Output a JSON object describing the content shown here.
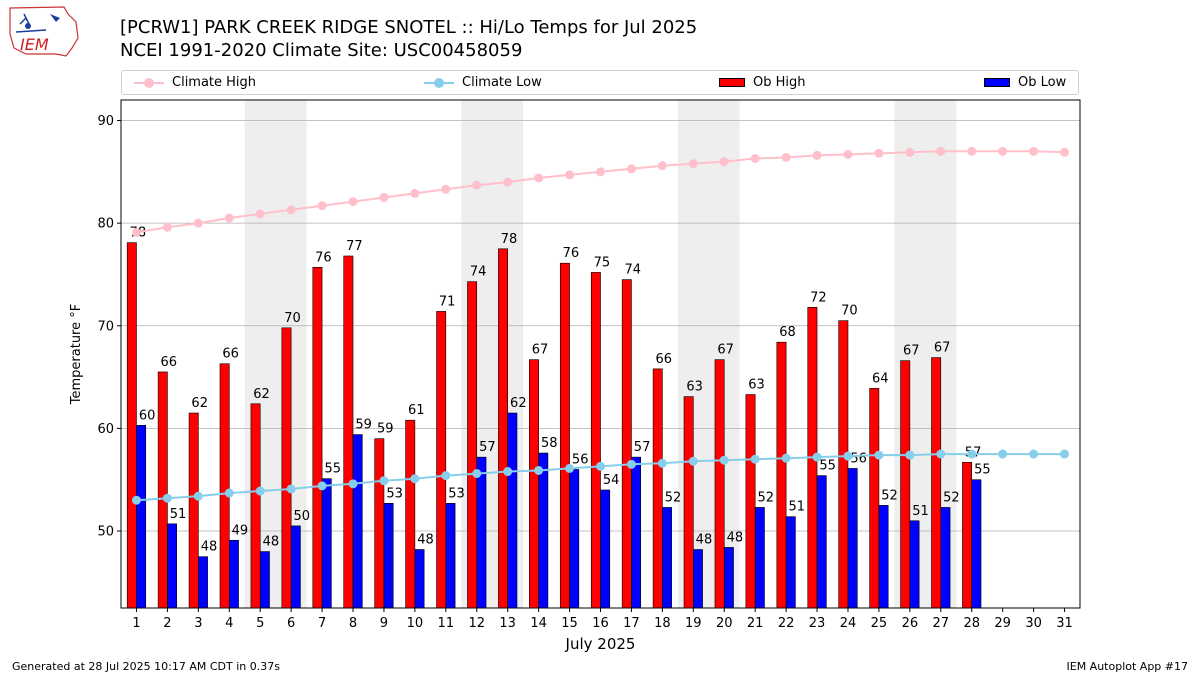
{
  "header": {
    "logo_text": "IEM",
    "title_line1": "[PCRW1] PARK CREEK RIDGE SNOTEL :: Hi/Lo Temps for Jul 2025",
    "title_line2": "NCEI 1991-2020 Climate Site: USC00458059"
  },
  "legend": {
    "climate_high": "Climate High",
    "climate_low": "Climate Low",
    "ob_high": "Ob High",
    "ob_low": "Ob Low"
  },
  "colors": {
    "ob_high": "#ff0000",
    "ob_low": "#0000ff",
    "climate_high": "#ffc0cb",
    "climate_low": "#87ceeb",
    "weekend_shade": "#eeeeee",
    "grid": "#b0b0b0"
  },
  "chart_data": {
    "type": "bar",
    "xlabel": "July 2025",
    "ylabel": "Temperature °F",
    "ylim": [
      42.5,
      92
    ],
    "yticks": [
      50,
      60,
      70,
      80,
      90
    ],
    "x": [
      1,
      2,
      3,
      4,
      5,
      6,
      7,
      8,
      9,
      10,
      11,
      12,
      13,
      14,
      15,
      16,
      17,
      18,
      19,
      20,
      21,
      22,
      23,
      24,
      25,
      26,
      27,
      28,
      29,
      30,
      31
    ],
    "shaded_days": [
      [
        5,
        6
      ],
      [
        12,
        13
      ],
      [
        19,
        20
      ],
      [
        26,
        27
      ]
    ],
    "grid": "horizontal",
    "legend_position": "top",
    "series": [
      {
        "name": "Ob High",
        "kind": "bar",
        "values": [
          78,
          66,
          62,
          66,
          62,
          70,
          76,
          77,
          59,
          61,
          71,
          74,
          78,
          67,
          76,
          75,
          74,
          66,
          63,
          67,
          63,
          68,
          72,
          70,
          64,
          67,
          67,
          57,
          null,
          null,
          null
        ],
        "raw": [
          78.1,
          65.5,
          61.5,
          66.3,
          62.4,
          69.8,
          75.7,
          76.8,
          59.0,
          60.8,
          71.4,
          74.3,
          77.5,
          66.7,
          76.1,
          75.2,
          74.5,
          65.8,
          63.1,
          66.7,
          63.3,
          68.4,
          71.8,
          70.5,
          63.9,
          66.6,
          66.9,
          56.7,
          null,
          null,
          null
        ]
      },
      {
        "name": "Ob Low",
        "kind": "bar",
        "values": [
          60,
          51,
          48,
          49,
          48,
          50,
          55,
          59,
          53,
          48,
          53,
          57,
          62,
          58,
          56,
          54,
          57,
          52,
          48,
          48,
          52,
          51,
          55,
          56,
          52,
          51,
          52,
          55,
          null,
          null,
          null
        ],
        "raw": [
          60.3,
          50.7,
          47.5,
          49.1,
          48.0,
          50.5,
          55.1,
          59.4,
          52.7,
          48.2,
          52.7,
          57.2,
          61.5,
          57.6,
          56.0,
          54.0,
          57.2,
          52.3,
          48.2,
          48.4,
          52.3,
          51.4,
          55.4,
          56.1,
          52.5,
          51.0,
          52.3,
          55.0,
          null,
          null,
          null
        ]
      },
      {
        "name": "Climate High",
        "kind": "line",
        "values": [
          79.1,
          79.6,
          80.0,
          80.5,
          80.9,
          81.3,
          81.7,
          82.1,
          82.5,
          82.9,
          83.3,
          83.7,
          84.0,
          84.4,
          84.7,
          85.0,
          85.3,
          85.6,
          85.8,
          86.0,
          86.3,
          86.4,
          86.6,
          86.7,
          86.8,
          86.9,
          87.0,
          87.0,
          87.0,
          87.0,
          86.9
        ]
      },
      {
        "name": "Climate Low",
        "kind": "line",
        "values": [
          53.0,
          53.2,
          53.4,
          53.7,
          53.9,
          54.1,
          54.4,
          54.6,
          54.9,
          55.1,
          55.4,
          55.6,
          55.8,
          55.9,
          56.1,
          56.3,
          56.5,
          56.6,
          56.8,
          56.9,
          57.0,
          57.1,
          57.2,
          57.3,
          57.4,
          57.4,
          57.5,
          57.5,
          57.5,
          57.5,
          57.5
        ]
      }
    ]
  },
  "footer": {
    "generated": "Generated at 28 Jul 2025 10:17 AM CDT in 0.37s",
    "app": "IEM Autoplot App #17"
  }
}
